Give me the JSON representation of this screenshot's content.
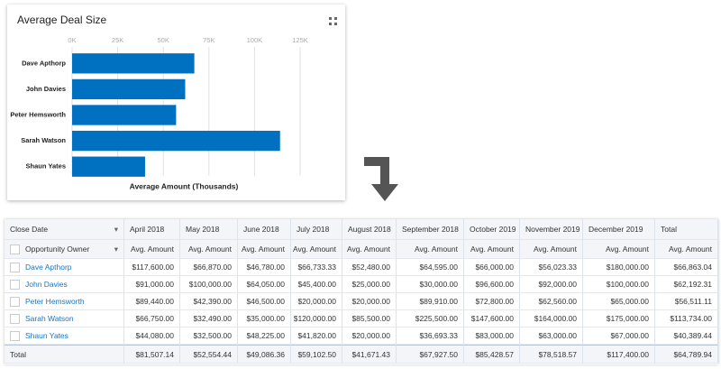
{
  "chart_data": {
    "type": "bar",
    "title": "Average Deal Size",
    "x_label": "Average Amount (Thousands)",
    "categories": [
      "Dave Apthorp",
      "John Davies",
      "Peter Hemsworth",
      "Sarah Watson",
      "Shaun Yates"
    ],
    "values": [
      67,
      62,
      57,
      114,
      40
    ],
    "color": "#0070c0",
    "xlim": [
      0,
      125
    ],
    "xticks": [
      {
        "value": 0,
        "label": "0K"
      },
      {
        "value": 25,
        "label": "25K"
      },
      {
        "value": 50,
        "label": "50K"
      },
      {
        "value": 75,
        "label": "75K"
      },
      {
        "value": 100,
        "label": "100K"
      },
      {
        "value": 125,
        "label": "125K"
      }
    ],
    "grid": true
  },
  "table": {
    "header_row1": [
      "Close Date",
      "April 2018",
      "May 2018",
      "June 2018",
      "July 2018",
      "August 2018",
      "September 2018",
      "October 2019",
      "November 2019",
      "December 2019",
      "Total"
    ],
    "header_row2": [
      "Opportunity Owner",
      "Avg. Amount",
      "Avg. Amount",
      "Avg. Amount",
      "Avg. Amount",
      "Avg. Amount",
      "Avg. Amount",
      "Avg. Amount",
      "Avg. Amount",
      "Avg. Amount",
      "Avg. Amount"
    ],
    "rows": [
      [
        "Dave Apthorp",
        "$117,600.00",
        "$66,870.00",
        "$46,780.00",
        "$66,733.33",
        "$52,480.00",
        "$64,595.00",
        "$66,000.00",
        "$56,023.33",
        "$180,000.00",
        "$66,863.04"
      ],
      [
        "John Davies",
        "$91,000.00",
        "$100,000.00",
        "$64,050.00",
        "$45,400.00",
        "$25,000.00",
        "$30,000.00",
        "$96,600.00",
        "$92,000.00",
        "$100,000.00",
        "$62,192.31"
      ],
      [
        "Peter Hemsworth",
        "$89,440.00",
        "$42,390.00",
        "$46,500.00",
        "$20,000.00",
        "$20,000.00",
        "$89,910.00",
        "$72,800.00",
        "$62,560.00",
        "$65,000.00",
        "$56,511.11"
      ],
      [
        "Sarah Watson",
        "$66,750.00",
        "$32,490.00",
        "$35,000.00",
        "$120,000.00",
        "$85,500.00",
        "$225,500.00",
        "$147,600.00",
        "$164,000.00",
        "$175,000.00",
        "$113,734.00"
      ],
      [
        "Shaun Yates",
        "$44,080.00",
        "$32,500.00",
        "$48,225.00",
        "$41,820.00",
        "$20,000.00",
        "$36,693.33",
        "$83,000.00",
        "$63,000.00",
        "$67,000.00",
        "$40,389.44"
      ]
    ],
    "total_row": [
      "Total",
      "$81,507.14",
      "$52,554.44",
      "$49,086.36",
      "$59,102.50",
      "$41,671.43",
      "$67,927.50",
      "$85,428.57",
      "$78,518.57",
      "$117,400.00",
      "$64,789.94"
    ]
  }
}
